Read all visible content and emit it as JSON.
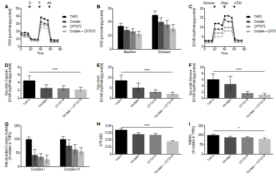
{
  "chart_data": [
    {
      "title": "A",
      "type": "line",
      "x_label": "Time",
      "y_label": "OCR (pmol/min/µg protein)",
      "xlim": [
        0,
        80
      ],
      "xticks": [
        0,
        20,
        40,
        60,
        80
      ],
      "ylim": [
        0,
        50
      ],
      "yticks": [
        0,
        10,
        20,
        30,
        40,
        50
      ],
      "legend": "right",
      "x": [
        1,
        8,
        15,
        21,
        28,
        35,
        41,
        48,
        55,
        61,
        68,
        75
      ],
      "series": [
        {
          "name": "THP1",
          "color": "#000000",
          "marker": "circle",
          "values": [
            17,
            18,
            17,
            10,
            9,
            9,
            38,
            36,
            34,
            9,
            8,
            8
          ]
        },
        {
          "name": "Oxidale",
          "color": "#4d4d4d",
          "marker": "rect",
          "values": [
            15,
            15,
            15,
            9,
            8,
            8,
            32,
            30,
            29,
            7,
            7,
            7
          ]
        },
        {
          "name": "CFT073",
          "color": "#808080",
          "marker": "triangle",
          "values": [
            14,
            14,
            13,
            8,
            8,
            7,
            29,
            28,
            27,
            6,
            6,
            6
          ]
        },
        {
          "name": "Oxidale + CFT073",
          "color": "#a6a6a6",
          "marker": "diamond",
          "values": [
            12,
            12,
            12,
            7,
            7,
            7,
            25,
            24,
            23,
            5,
            5,
            5
          ]
        }
      ],
      "annotations": [
        {
          "x": 18,
          "label": "O"
        },
        {
          "x": 38,
          "label": "F"
        },
        {
          "x": 58,
          "label": "AA"
        }
      ]
    },
    {
      "title": "B",
      "type": "bar",
      "y_label": "OCR (pmol/min/µg protein)",
      "ylim": [
        0,
        30
      ],
      "yticks": [
        0,
        10,
        20,
        30
      ],
      "categories": [
        "Baseline",
        "Stressed"
      ],
      "series": [
        {
          "name": "THP1",
          "color": "#000000",
          "values": [
            17,
            25
          ],
          "errors": [
            2,
            3
          ]
        },
        {
          "name": "Oxidale",
          "color": "#4d4d4d",
          "values": [
            14,
            20
          ],
          "errors": [
            2,
            3
          ]
        },
        {
          "name": "CFT073",
          "color": "#808080",
          "values": [
            13,
            18
          ],
          "errors": [
            2,
            3
          ]
        },
        {
          "name": "Oxidale + CFT073",
          "color": "#bfbfbf",
          "values": [
            11,
            15
          ],
          "errors": [
            2,
            3
          ]
        }
      ]
    },
    {
      "title": "C",
      "type": "line",
      "x_label": "Time",
      "y_label": "ECAR (mpH/min/µg protein)",
      "xlim": [
        0,
        80
      ],
      "xticks": [
        0,
        20,
        40,
        60,
        80
      ],
      "ylim": [
        0,
        20
      ],
      "yticks": [
        0,
        5,
        10,
        15,
        20
      ],
      "legend": "right",
      "x": [
        1,
        8,
        15,
        21,
        28,
        35,
        41,
        48,
        55,
        61,
        68,
        75
      ],
      "series": [
        {
          "name": "THP1",
          "color": "#000000",
          "marker": "circle",
          "values": [
            3,
            3,
            3,
            12,
            12,
            11,
            16,
            16,
            15,
            4,
            3,
            3
          ]
        },
        {
          "name": "Oxidale",
          "color": "#4d4d4d",
          "marker": "rect",
          "values": [
            2.5,
            2.5,
            2.5,
            9,
            9,
            9,
            14,
            13,
            13,
            3,
            3,
            3
          ]
        },
        {
          "name": "CFT073",
          "color": "#808080",
          "marker": "triangle",
          "values": [
            2,
            2,
            2,
            7,
            7,
            7,
            10,
            10,
            10,
            2.5,
            2.5,
            2.5
          ]
        },
        {
          "name": "Oxidale + CFT073",
          "color": "#a6a6a6",
          "marker": "diamond",
          "values": [
            2,
            2,
            2,
            5,
            5,
            5,
            8,
            8,
            8,
            2,
            2,
            2
          ]
        }
      ],
      "annotations": [
        {
          "x": 20,
          "label": "Glucose"
        },
        {
          "x": 40,
          "label": "Oligo"
        },
        {
          "x": 60,
          "label": "2-DG"
        }
      ]
    },
    {
      "title": "D",
      "type": "bar",
      "y_label": "Glycolytic Capacity\nECAR (mpH/min/µg protein)",
      "ylim": [
        0,
        8
      ],
      "yticks": [
        0,
        2,
        4,
        6,
        8
      ],
      "categories": [
        "THP1",
        "Oxidale",
        "CFT073",
        "Oxidale + CFT073"
      ],
      "values": [
        4.5,
        2.6,
        2.5,
        2.2
      ],
      "errors": [
        1.2,
        0.8,
        0.7,
        0.6
      ],
      "colors": [
        "#000000",
        "#4d4d4d",
        "#808080",
        "#bfbfbf"
      ],
      "significance": [
        {
          "from": "THP1",
          "to": "Oxidale + CFT073",
          "y": 6.8,
          "label": "****"
        }
      ]
    },
    {
      "title": "E",
      "type": "bar",
      "y_label": "Glycolysis\nECAR (mpH/min/µg protein)",
      "ylim": [
        0,
        15
      ],
      "yticks": [
        0,
        5,
        10,
        15
      ],
      "categories": [
        "THP1",
        "Oxidale",
        "CFT073",
        "Oxidale + CFT073"
      ],
      "values": [
        8.5,
        5,
        3,
        2
      ],
      "errors": [
        2.5,
        2.2,
        1,
        0.8
      ],
      "colors": [
        "#000000",
        "#4d4d4d",
        "#808080",
        "#bfbfbf"
      ],
      "significance": [
        {
          "from": "THP1",
          "to": "Oxidale + CFT073",
          "y": 12.5,
          "label": "****"
        }
      ]
    },
    {
      "title": "F",
      "type": "bar",
      "y_label": "Glycolytic Reserve\nECAR (mpH/min/µg protein)",
      "ylim": [
        0,
        10
      ],
      "yticks": [
        0,
        2,
        4,
        6,
        8,
        10
      ],
      "categories": [
        "THP1",
        "Oxidale",
        "CFT073",
        "Oxidale + CFT073"
      ],
      "values": [
        6,
        4.5,
        1.6,
        1.1
      ],
      "errors": [
        1.8,
        2.5,
        0.6,
        0.4
      ],
      "colors": [
        "#000000",
        "#4d4d4d",
        "#808080",
        "#bfbfbf"
      ],
      "significance": [
        {
          "from": "THP1",
          "to": "Oxidale + CFT073",
          "y": 8.6,
          "label": "****"
        }
      ]
    },
    {
      "title": "G",
      "type": "bar",
      "y_label": "Mitochondrial Complex Activity\n(% relative to THP1)",
      "ylim": [
        0,
        150
      ],
      "yticks": [
        0,
        50,
        100,
        150
      ],
      "categories": [
        "Complex I",
        "Complex IV"
      ],
      "series": [
        {
          "name": "THP1",
          "color": "#000000",
          "values": [
            100,
            100
          ],
          "errors": [
            8,
            10
          ]
        },
        {
          "name": "Oxidale",
          "color": "#4d4d4d",
          "values": [
            42,
            76
          ],
          "errors": [
            20,
            22
          ]
        },
        {
          "name": "CFT073",
          "color": "#808080",
          "values": [
            35,
            62
          ],
          "errors": [
            12,
            18
          ]
        },
        {
          "name": "Oxidale + CFT073",
          "color": "#bfbfbf",
          "values": [
            26,
            55
          ],
          "errors": [
            15,
            14
          ]
        }
      ]
    },
    {
      "title": "H",
      "type": "bar",
      "y_label": "ATP (nM)",
      "ylim": [
        0,
        0.04
      ],
      "yticks": [
        0,
        0.01,
        0.02,
        0.03,
        0.04
      ],
      "categories": [
        "THP1",
        "Oxidale",
        "CFT073",
        "Oxidale + CFT073"
      ],
      "values": [
        0.034,
        0.028,
        0.027,
        0.018
      ],
      "errors": [
        0.002,
        0.002,
        0.002,
        0.001
      ],
      "colors": [
        "#000000",
        "#4d4d4d",
        "#808080",
        "#bfbfbf"
      ],
      "significance": [
        {
          "from": "THP1",
          "to": "Oxidale + CFT073",
          "y": 0.038,
          "label": "****"
        }
      ]
    },
    {
      "title": "I",
      "type": "bar",
      "y_label": "Viability\n(% relative to THP1)",
      "ylim": [
        0,
        150
      ],
      "yticks": [
        0,
        50,
        100,
        150
      ],
      "categories": [
        "THP1",
        "Oxidale",
        "CFT073",
        "Oxidale + CFT073"
      ],
      "values": [
        100,
        88,
        88,
        80
      ],
      "errors": [
        5,
        6,
        5,
        6
      ],
      "colors": [
        "#000000",
        "#4d4d4d",
        "#808080",
        "#bfbfbf"
      ],
      "significance": [
        {
          "from": "THP1",
          "to": "Oxidale + CFT073",
          "y": 125,
          "label": "*"
        }
      ]
    }
  ]
}
